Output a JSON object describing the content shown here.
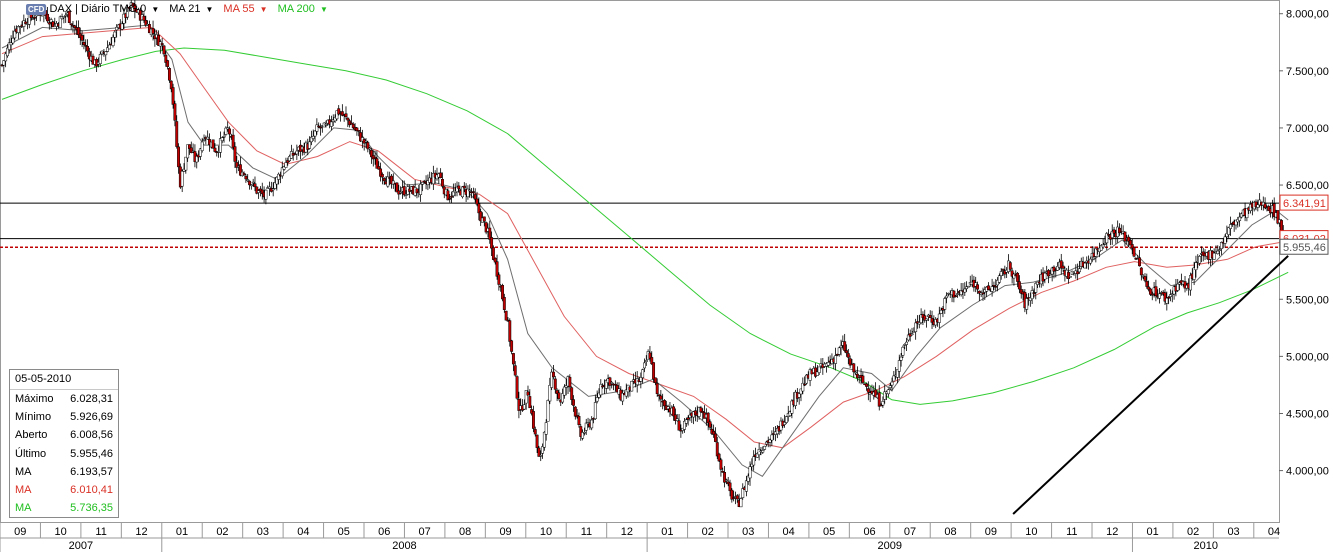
{
  "toolbar": {
    "icon": "cfd-icon",
    "icon_text": "CFD",
    "title": "DAX | Diário TMG",
    "title_suffix": "0",
    "indicators": [
      {
        "label": "MA 21",
        "color": "#000000"
      },
      {
        "label": "MA 55",
        "color": "#d93025"
      },
      {
        "label": "MA 200",
        "color": "#1fbf1f"
      }
    ]
  },
  "info_box": {
    "date": "05-05-2010",
    "rows": [
      {
        "label": "Máximo",
        "value": "6.028,31",
        "color": "#000000"
      },
      {
        "label": "Mínimo",
        "value": "5.926,69",
        "color": "#000000"
      },
      {
        "label": "Aberto",
        "value": "6.008,56",
        "color": "#000000"
      },
      {
        "label": "Último",
        "value": "5.955,46",
        "color": "#000000"
      },
      {
        "label": "MA",
        "value": "6.193,57",
        "color": "#000000"
      },
      {
        "label": "MA",
        "value": "6.010,41",
        "color": "#d93025"
      },
      {
        "label": "MA",
        "value": "5.736,35",
        "color": "#1fbf1f"
      }
    ]
  },
  "chart_data": {
    "type": "line",
    "instrument": "DAX",
    "y_ticks": [
      "8.000,00",
      "7.500,00",
      "7.000,00",
      "6.500,00",
      "6.000,00",
      "5.500,00",
      "5.000,00",
      "4.500,00",
      "4.000,00"
    ],
    "y_tick_values": [
      8000,
      7500,
      7000,
      6500,
      6000,
      5500,
      5000,
      4500,
      4000
    ],
    "ylim": [
      3550,
      8120
    ],
    "x_months": [
      "09",
      "10",
      "11",
      "12",
      "01",
      "02",
      "03",
      "04",
      "05",
      "06",
      "07",
      "08",
      "09",
      "10",
      "11",
      "12",
      "01",
      "02",
      "03",
      "04",
      "05",
      "06",
      "07",
      "08",
      "09",
      "10",
      "11",
      "12",
      "01",
      "02",
      "03",
      "04"
    ],
    "x_years": [
      {
        "label": "2007",
        "start": 0,
        "end": 4
      },
      {
        "label": "2008",
        "start": 4,
        "end": 16
      },
      {
        "label": "2009",
        "start": 16,
        "end": 28
      },
      {
        "label": "2010",
        "start": 28,
        "end": 32
      }
    ],
    "price_labels": [
      {
        "value": 6341.91,
        "text": "6.341,91",
        "color": "#d93025"
      },
      {
        "value": 6031.02,
        "text": "6.031,02",
        "color": "#d93025"
      },
      {
        "value": 5955.46,
        "text": "5.955,46",
        "color": "#555555"
      }
    ],
    "horizontal_lines": [
      {
        "value": 6341.91,
        "style": "solid",
        "color": "#000000"
      },
      {
        "value": 6031.02,
        "style": "solid",
        "color": "#000000"
      },
      {
        "value": 5955.46,
        "style": "dotted",
        "color": "#c00000"
      }
    ],
    "trendline": {
      "from": [
        25.0,
        3620
      ],
      "to": [
        31.8,
        5880
      ],
      "color": "#000000"
    },
    "series": [
      {
        "key": "price",
        "color": "#000000",
        "points": [
          [
            0,
            7550
          ],
          [
            0.3,
            7850
          ],
          [
            0.6,
            7950
          ],
          [
            1.0,
            8020
          ],
          [
            1.3,
            7900
          ],
          [
            1.6,
            8000
          ],
          [
            2.0,
            7750
          ],
          [
            2.3,
            7550
          ],
          [
            2.6,
            7700
          ],
          [
            3.0,
            7950
          ],
          [
            3.2,
            8070
          ],
          [
            3.5,
            7950
          ],
          [
            3.8,
            7800
          ],
          [
            4.0,
            7700
          ],
          [
            4.2,
            7350
          ],
          [
            4.4,
            6500
          ],
          [
            4.6,
            6850
          ],
          [
            4.8,
            6700
          ],
          [
            5.0,
            6950
          ],
          [
            5.3,
            6800
          ],
          [
            5.6,
            7000
          ],
          [
            5.8,
            6650
          ],
          [
            6.0,
            6600
          ],
          [
            6.3,
            6450
          ],
          [
            6.5,
            6400
          ],
          [
            6.8,
            6550
          ],
          [
            7.0,
            6700
          ],
          [
            7.3,
            6800
          ],
          [
            7.6,
            6850
          ],
          [
            7.8,
            7000
          ],
          [
            8.0,
            7000
          ],
          [
            8.3,
            7150
          ],
          [
            8.6,
            7050
          ],
          [
            8.8,
            6950
          ],
          [
            9.0,
            6850
          ],
          [
            9.3,
            6650
          ],
          [
            9.5,
            6550
          ],
          [
            9.8,
            6450
          ],
          [
            10.0,
            6450
          ],
          [
            10.3,
            6450
          ],
          [
            10.6,
            6550
          ],
          [
            10.8,
            6600
          ],
          [
            11.0,
            6400
          ],
          [
            11.3,
            6450
          ],
          [
            11.6,
            6450
          ],
          [
            11.8,
            6250
          ],
          [
            12.0,
            6100
          ],
          [
            12.3,
            5650
          ],
          [
            12.5,
            5300
          ],
          [
            12.8,
            4500
          ],
          [
            13.0,
            4700
          ],
          [
            13.3,
            4050
          ],
          [
            13.6,
            4850
          ],
          [
            13.8,
            4600
          ],
          [
            14.0,
            4800
          ],
          [
            14.3,
            4300
          ],
          [
            14.6,
            4450
          ],
          [
            14.8,
            4750
          ],
          [
            15.0,
            4800
          ],
          [
            15.3,
            4650
          ],
          [
            15.6,
            4750
          ],
          [
            15.8,
            4800
          ],
          [
            16.0,
            5050
          ],
          [
            16.2,
            4650
          ],
          [
            16.5,
            4550
          ],
          [
            16.8,
            4350
          ],
          [
            17.0,
            4450
          ],
          [
            17.3,
            4550
          ],
          [
            17.6,
            4300
          ],
          [
            17.8,
            4000
          ],
          [
            18.0,
            3800
          ],
          [
            18.2,
            3700
          ],
          [
            18.4,
            3900
          ],
          [
            18.6,
            4150
          ],
          [
            18.9,
            4250
          ],
          [
            19.1,
            4300
          ],
          [
            19.4,
            4500
          ],
          [
            19.7,
            4700
          ],
          [
            20.0,
            4850
          ],
          [
            20.3,
            4900
          ],
          [
            20.6,
            5000
          ],
          [
            20.8,
            5100
          ],
          [
            21.0,
            4900
          ],
          [
            21.2,
            4800
          ],
          [
            21.5,
            4700
          ],
          [
            21.7,
            4600
          ],
          [
            22.0,
            4750
          ],
          [
            22.3,
            5100
          ],
          [
            22.6,
            5300
          ],
          [
            22.9,
            5350
          ],
          [
            23.1,
            5300
          ],
          [
            23.4,
            5550
          ],
          [
            23.7,
            5550
          ],
          [
            24.0,
            5650
          ],
          [
            24.3,
            5550
          ],
          [
            24.6,
            5650
          ],
          [
            24.9,
            5800
          ],
          [
            25.1,
            5650
          ],
          [
            25.3,
            5450
          ],
          [
            25.6,
            5650
          ],
          [
            25.9,
            5750
          ],
          [
            26.1,
            5800
          ],
          [
            26.4,
            5700
          ],
          [
            26.7,
            5800
          ],
          [
            27.0,
            5900
          ],
          [
            27.3,
            6050
          ],
          [
            27.6,
            6100
          ],
          [
            27.9,
            6000
          ],
          [
            28.1,
            5800
          ],
          [
            28.3,
            5600
          ],
          [
            28.6,
            5550
          ],
          [
            28.8,
            5500
          ],
          [
            29.1,
            5650
          ],
          [
            29.3,
            5600
          ],
          [
            29.6,
            5850
          ],
          [
            29.9,
            5900
          ],
          [
            30.1,
            5950
          ],
          [
            30.4,
            6150
          ],
          [
            30.7,
            6250
          ],
          [
            30.9,
            6300
          ],
          [
            31.2,
            6350
          ],
          [
            31.5,
            6250
          ],
          [
            31.8,
            5955
          ]
        ]
      },
      {
        "key": "ma21",
        "color": "#6e6e6e",
        "points": [
          [
            0,
            7700
          ],
          [
            1.0,
            7880
          ],
          [
            2.0,
            7850
          ],
          [
            3.0,
            7880
          ],
          [
            3.6,
            7900
          ],
          [
            4.2,
            7600
          ],
          [
            4.6,
            7050
          ],
          [
            5.0,
            6850
          ],
          [
            5.6,
            6850
          ],
          [
            6.2,
            6650
          ],
          [
            6.8,
            6550
          ],
          [
            7.5,
            6750
          ],
          [
            8.2,
            7000
          ],
          [
            8.8,
            6980
          ],
          [
            9.3,
            6750
          ],
          [
            10.0,
            6500
          ],
          [
            10.7,
            6520
          ],
          [
            11.5,
            6450
          ],
          [
            12.0,
            6250
          ],
          [
            12.5,
            5850
          ],
          [
            13.0,
            5200
          ],
          [
            13.6,
            4900
          ],
          [
            14.5,
            4650
          ],
          [
            15.4,
            4700
          ],
          [
            16.1,
            4800
          ],
          [
            16.8,
            4600
          ],
          [
            17.6,
            4350
          ],
          [
            18.3,
            4050
          ],
          [
            18.8,
            3950
          ],
          [
            19.5,
            4300
          ],
          [
            20.2,
            4650
          ],
          [
            20.8,
            4900
          ],
          [
            21.5,
            4850
          ],
          [
            22.0,
            4700
          ],
          [
            22.6,
            5000
          ],
          [
            23.2,
            5250
          ],
          [
            24.0,
            5450
          ],
          [
            24.8,
            5620
          ],
          [
            25.5,
            5650
          ],
          [
            26.2,
            5720
          ],
          [
            27.0,
            5850
          ],
          [
            27.7,
            6020
          ],
          [
            28.3,
            5800
          ],
          [
            28.9,
            5620
          ],
          [
            29.5,
            5650
          ],
          [
            30.2,
            5900
          ],
          [
            30.9,
            6150
          ],
          [
            31.5,
            6280
          ],
          [
            31.8,
            6194
          ]
        ]
      },
      {
        "key": "ma55",
        "color": "#e06060",
        "points": [
          [
            0,
            7650
          ],
          [
            1.0,
            7800
          ],
          [
            2.0,
            7830
          ],
          [
            3.0,
            7860
          ],
          [
            3.7,
            7880
          ],
          [
            4.4,
            7650
          ],
          [
            5.0,
            7350
          ],
          [
            5.6,
            7050
          ],
          [
            6.3,
            6800
          ],
          [
            7.0,
            6680
          ],
          [
            7.8,
            6750
          ],
          [
            8.6,
            6880
          ],
          [
            9.3,
            6800
          ],
          [
            10.2,
            6550
          ],
          [
            11.0,
            6480
          ],
          [
            11.8,
            6420
          ],
          [
            12.5,
            6250
          ],
          [
            13.2,
            5800
          ],
          [
            13.9,
            5350
          ],
          [
            14.7,
            5000
          ],
          [
            15.5,
            4850
          ],
          [
            16.3,
            4750
          ],
          [
            17.1,
            4650
          ],
          [
            17.9,
            4450
          ],
          [
            18.6,
            4250
          ],
          [
            19.3,
            4200
          ],
          [
            20.0,
            4380
          ],
          [
            20.8,
            4600
          ],
          [
            21.6,
            4700
          ],
          [
            22.3,
            4820
          ],
          [
            23.1,
            5000
          ],
          [
            24.0,
            5230
          ],
          [
            24.9,
            5420
          ],
          [
            25.7,
            5560
          ],
          [
            26.5,
            5660
          ],
          [
            27.3,
            5780
          ],
          [
            28.0,
            5830
          ],
          [
            28.8,
            5780
          ],
          [
            29.5,
            5800
          ],
          [
            30.3,
            5850
          ],
          [
            31.0,
            5960
          ],
          [
            31.8,
            6010
          ]
        ]
      },
      {
        "key": "ma200",
        "color": "#33cc33",
        "points": [
          [
            0,
            7250
          ],
          [
            1.0,
            7380
          ],
          [
            2.0,
            7500
          ],
          [
            3.0,
            7600
          ],
          [
            3.8,
            7670
          ],
          [
            4.5,
            7700
          ],
          [
            5.5,
            7680
          ],
          [
            6.5,
            7620
          ],
          [
            7.5,
            7560
          ],
          [
            8.5,
            7500
          ],
          [
            9.5,
            7420
          ],
          [
            10.5,
            7300
          ],
          [
            11.5,
            7150
          ],
          [
            12.5,
            6950
          ],
          [
            13.5,
            6650
          ],
          [
            14.5,
            6350
          ],
          [
            15.5,
            6050
          ],
          [
            16.5,
            5750
          ],
          [
            17.5,
            5450
          ],
          [
            18.5,
            5200
          ],
          [
            19.5,
            5020
          ],
          [
            20.5,
            4900
          ],
          [
            21.3,
            4780
          ],
          [
            22.0,
            4620
          ],
          [
            22.7,
            4580
          ],
          [
            23.5,
            4610
          ],
          [
            24.5,
            4680
          ],
          [
            25.5,
            4780
          ],
          [
            26.5,
            4900
          ],
          [
            27.5,
            5060
          ],
          [
            28.5,
            5260
          ],
          [
            29.3,
            5380
          ],
          [
            30.1,
            5470
          ],
          [
            30.9,
            5580
          ],
          [
            31.8,
            5736
          ]
        ]
      }
    ]
  }
}
